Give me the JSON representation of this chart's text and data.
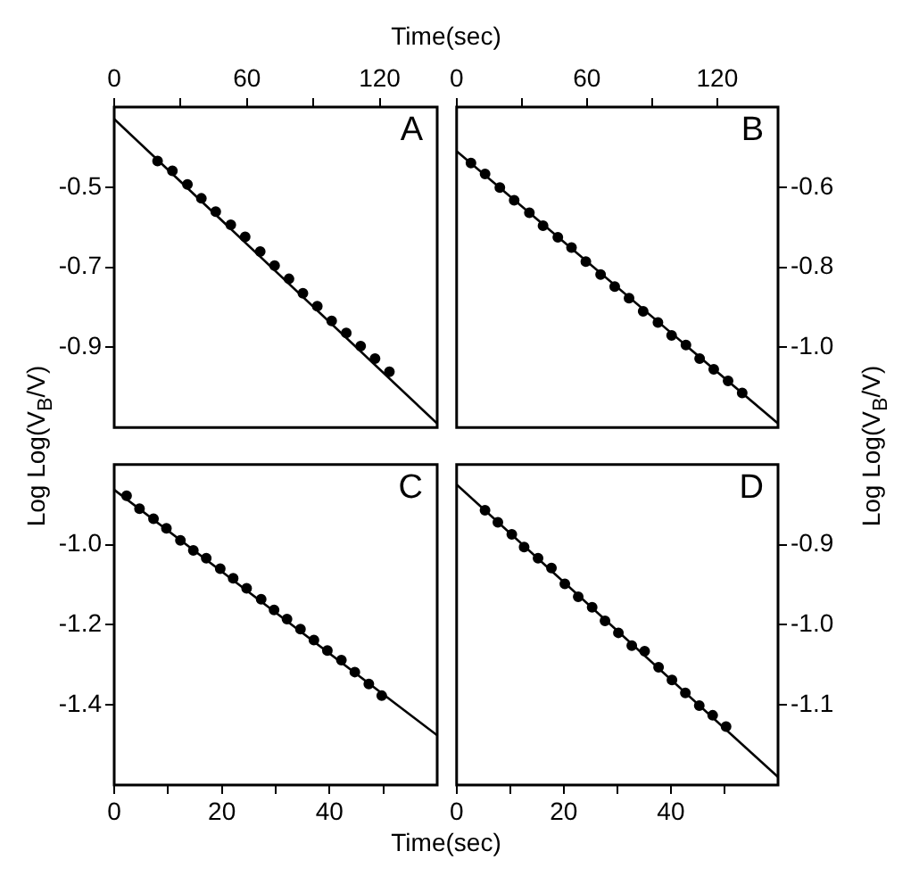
{
  "chart_data": [
    {
      "type": "scatter",
      "xlabel": "Time(sec)",
      "ylabel": "Log Log(V$_{B}$/V)",
      "xlim": [
        0,
        146
      ],
      "xticks": [
        0,
        {
          "value": 30,
          "label": null
        },
        60,
        {
          "value": 90,
          "label": null
        },
        120
      ],
      "ylim": [
        -1.1,
        -0.3
      ],
      "yticks": [
        {
          "value": -0.5,
          "label": "-0.5"
        },
        {
          "value": -0.7,
          "label": "-0.7"
        },
        {
          "value": -0.9,
          "label": "-0.9"
        }
      ],
      "annotations": [
        "A"
      ],
      "series": [
        {
          "marker": "circle",
          "color": "#000000",
          "x": [
            19.6,
            26.3,
            33.1,
            39.4,
            45.9,
            52.7,
            59.2,
            66.0,
            72.5,
            79.0,
            85.3,
            91.8,
            98.3,
            104.9,
            111.4,
            117.9,
            124.4
          ],
          "values": [
            -0.435,
            -0.459,
            -0.493,
            -0.528,
            -0.561,
            -0.594,
            -0.624,
            -0.661,
            -0.696,
            -0.729,
            -0.765,
            -0.797,
            -0.834,
            -0.864,
            -0.897,
            -0.928,
            -0.961
          ]
        },
        {
          "type": "line",
          "marker": "none",
          "color": "#000000",
          "x": [
            0,
            146
          ],
          "values": [
            -0.33,
            -1.09
          ]
        }
      ]
    },
    {
      "type": "scatter",
      "y2label": "Log Log(V$_{B}$/V)",
      "xlim": [
        0,
        148
      ],
      "xticks": [
        0,
        {
          "value": 30,
          "label": null
        },
        60,
        {
          "value": 90,
          "label": null
        },
        120
      ],
      "y2lim": [
        -1.2,
        -0.4
      ],
      "y2ticks": [
        {
          "value": -0.6,
          "label": "-0.6"
        },
        {
          "value": -0.8,
          "label": "-0.8"
        },
        {
          "value": -1.0,
          "label": "-1.0"
        }
      ],
      "annotations": [
        "B"
      ],
      "series": [
        {
          "axis": "y2",
          "marker": "circle",
          "color": "#000000",
          "x": [
            6.6,
            13.1,
            19.9,
            26.5,
            33.5,
            39.8,
            46.6,
            52.9,
            59.5,
            66.3,
            72.8,
            79.4,
            85.9,
            92.7,
            99.0,
            105.6,
            111.9,
            118.4,
            125.0,
            131.5
          ],
          "values": [
            -0.54,
            -0.567,
            -0.601,
            -0.633,
            -0.664,
            -0.696,
            -0.725,
            -0.751,
            -0.786,
            -0.818,
            -0.848,
            -0.877,
            -0.91,
            -0.938,
            -0.97,
            -0.994,
            -1.028,
            -1.055,
            -1.084,
            -1.114
          ]
        },
        {
          "type": "line",
          "axis": "y2",
          "marker": "none",
          "color": "#000000",
          "x": [
            0,
            148
          ],
          "values": [
            -0.51,
            -1.19
          ]
        }
      ]
    },
    {
      "type": "scatter",
      "xlabel": "Time(sec)",
      "xlim": [
        0,
        60
      ],
      "xticks": [
        0,
        {
          "value": 10,
          "label": null
        },
        20,
        {
          "value": 30,
          "label": null
        },
        40,
        {
          "value": 50,
          "label": null
        }
      ],
      "ylim": [
        -1.6,
        -0.8
      ],
      "yticks": [
        {
          "value": -1.0,
          "label": "-1.0"
        },
        {
          "value": -1.2,
          "label": "-1.2"
        },
        {
          "value": -1.4,
          "label": "-1.4"
        }
      ],
      "annotations": [
        "C"
      ],
      "series": [
        {
          "marker": "circle",
          "color": "#000000",
          "x": [
            2.3,
            4.7,
            7.3,
            9.7,
            12.3,
            14.7,
            17.1,
            19.7,
            22.1,
            24.6,
            27.3,
            29.7,
            32.1,
            34.6,
            37.1,
            39.6,
            42.2,
            44.7,
            47.3,
            49.7
          ],
          "values": [
            -0.878,
            -0.91,
            -0.935,
            -0.959,
            -0.989,
            -1.014,
            -1.034,
            -1.06,
            -1.084,
            -1.109,
            -1.136,
            -1.163,
            -1.186,
            -1.211,
            -1.238,
            -1.264,
            -1.288,
            -1.318,
            -1.348,
            -1.377
          ]
        },
        {
          "type": "line",
          "marker": "none",
          "color": "#000000",
          "x": [
            0,
            60
          ],
          "values": [
            -0.863,
            -1.476
          ]
        }
      ]
    },
    {
      "type": "scatter",
      "xlim": [
        0,
        60
      ],
      "xticks": [
        0,
        {
          "value": 10,
          "label": null
        },
        20,
        {
          "value": 30,
          "label": null
        },
        40,
        {
          "value": 50,
          "label": null
        }
      ],
      "y2lim": [
        -1.2,
        -0.8
      ],
      "y2ticks": [
        {
          "value": -0.9,
          "label": "-0.9"
        },
        {
          "value": -1.0,
          "label": "-1.0"
        },
        {
          "value": -1.1,
          "label": "-1.1"
        }
      ],
      "annotations": [
        "D"
      ],
      "series": [
        {
          "axis": "y2",
          "marker": "circle",
          "color": "#000000",
          "x": [
            5.3,
            7.7,
            10.3,
            12.6,
            15.2,
            17.7,
            20.2,
            22.7,
            25.3,
            27.7,
            30.2,
            32.7,
            35.1,
            37.7,
            40.2,
            42.7,
            45.3,
            47.8,
            50.3
          ],
          "values": [
            -0.857,
            -0.872,
            -0.887,
            -0.903,
            -0.917,
            -0.929,
            -0.949,
            -0.965,
            -0.978,
            -0.995,
            -1.01,
            -1.026,
            -1.033,
            -1.053,
            -1.069,
            -1.085,
            -1.101,
            -1.113,
            -1.127
          ]
        },
        {
          "type": "line",
          "axis": "y2",
          "marker": "none",
          "color": "#000000",
          "x": [
            0,
            60
          ],
          "values": [
            -0.825,
            -1.19
          ]
        }
      ]
    }
  ]
}
